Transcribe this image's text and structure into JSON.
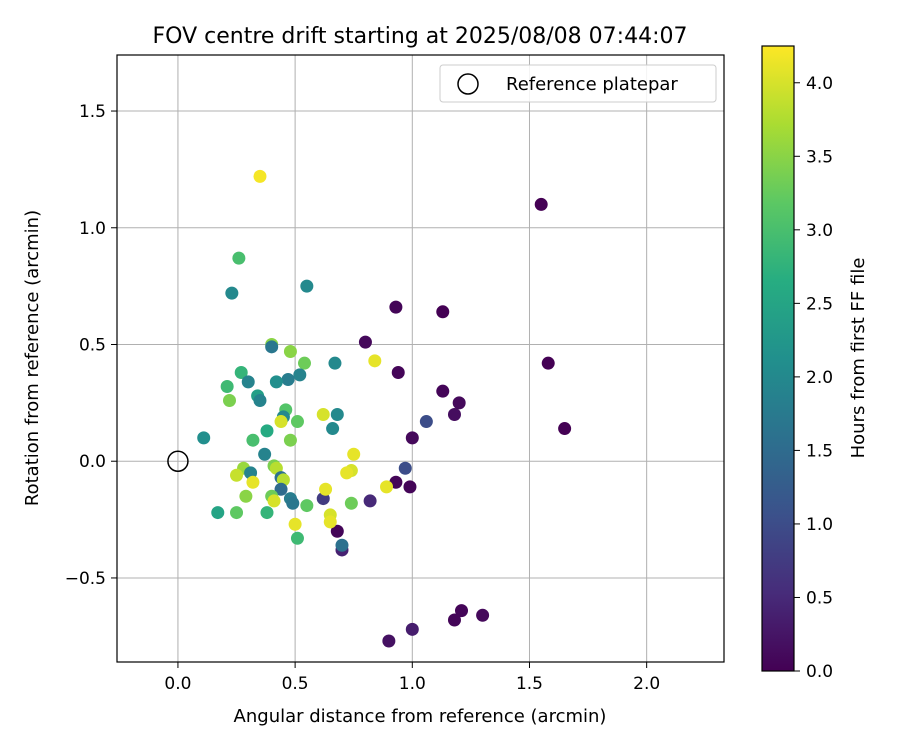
{
  "chart_data": {
    "type": "scatter",
    "title": "FOV centre drift starting at 2025/08/08 07:44:07",
    "xlabel": "Angular distance from reference (arcmin)",
    "ylabel": "Rotation from reference (arcmin)",
    "xlim": [
      -0.26,
      2.33
    ],
    "ylim": [
      -0.86,
      1.74
    ],
    "xticks": [
      0.0,
      0.5,
      1.0,
      1.5,
      2.0
    ],
    "yticks": [
      -0.5,
      0.0,
      0.5,
      1.0,
      1.5
    ],
    "xtick_labels": [
      "0.0",
      "0.5",
      "1.0",
      "1.5",
      "2.0"
    ],
    "ytick_labels": [
      "−0.5",
      "0.0",
      "0.5",
      "1.0",
      "1.5"
    ],
    "grid": true,
    "legend": {
      "position": "top-right",
      "entries": [
        "Reference platepar"
      ]
    },
    "reference_point": {
      "x": 0.0,
      "y": 0.0
    },
    "colorbar": {
      "label": "Hours from first FF file",
      "colormap": "viridis",
      "range": [
        0.0,
        4.25
      ],
      "ticks": [
        0.0,
        0.5,
        1.0,
        1.5,
        2.0,
        2.5,
        3.0,
        3.5,
        4.0
      ],
      "tick_labels": [
        "0.0",
        "0.5",
        "1.0",
        "1.5",
        "2.0",
        "2.5",
        "3.0",
        "3.5",
        "4.0"
      ]
    },
    "points": [
      {
        "x": 1.55,
        "y": 1.1,
        "c": 0.0
      },
      {
        "x": 1.58,
        "y": 0.42,
        "c": 0.0
      },
      {
        "x": 1.65,
        "y": 0.14,
        "c": 0.0
      },
      {
        "x": 1.13,
        "y": 0.64,
        "c": 0.0
      },
      {
        "x": 0.93,
        "y": 0.66,
        "c": 0.05
      },
      {
        "x": 0.8,
        "y": 0.51,
        "c": 0.1
      },
      {
        "x": 0.94,
        "y": 0.38,
        "c": 0.05
      },
      {
        "x": 1.13,
        "y": 0.3,
        "c": 0.05
      },
      {
        "x": 1.2,
        "y": 0.25,
        "c": 0.1
      },
      {
        "x": 1.18,
        "y": 0.2,
        "c": 0.15
      },
      {
        "x": 1.06,
        "y": 0.17,
        "c": 1.0
      },
      {
        "x": 1.0,
        "y": 0.1,
        "c": 0.1
      },
      {
        "x": 0.97,
        "y": -0.03,
        "c": 1.0
      },
      {
        "x": 0.93,
        "y": -0.09,
        "c": 0.05
      },
      {
        "x": 0.99,
        "y": -0.11,
        "c": 0.05
      },
      {
        "x": 0.82,
        "y": -0.17,
        "c": 0.5
      },
      {
        "x": 0.62,
        "y": -0.16,
        "c": 0.75
      },
      {
        "x": 0.68,
        "y": -0.3,
        "c": 0.05
      },
      {
        "x": 0.7,
        "y": -0.38,
        "c": 0.4
      },
      {
        "x": 0.7,
        "y": -0.36,
        "c": 1.6
      },
      {
        "x": 1.3,
        "y": -0.66,
        "c": 0.1
      },
      {
        "x": 1.21,
        "y": -0.64,
        "c": 0.05
      },
      {
        "x": 1.18,
        "y": -0.68,
        "c": 0.05
      },
      {
        "x": 1.0,
        "y": -0.72,
        "c": 0.35
      },
      {
        "x": 0.9,
        "y": -0.77,
        "c": 0.2
      },
      {
        "x": 0.35,
        "y": 1.22,
        "c": 4.2
      },
      {
        "x": 0.26,
        "y": 0.87,
        "c": 3.0
      },
      {
        "x": 0.23,
        "y": 0.72,
        "c": 2.0
      },
      {
        "x": 0.55,
        "y": 0.75,
        "c": 2.0
      },
      {
        "x": 0.4,
        "y": 0.5,
        "c": 3.5
      },
      {
        "x": 0.4,
        "y": 0.49,
        "c": 1.7
      },
      {
        "x": 0.48,
        "y": 0.47,
        "c": 3.5
      },
      {
        "x": 0.54,
        "y": 0.42,
        "c": 3.3
      },
      {
        "x": 0.67,
        "y": 0.42,
        "c": 2.0
      },
      {
        "x": 0.84,
        "y": 0.43,
        "c": 4.1
      },
      {
        "x": 0.27,
        "y": 0.38,
        "c": 2.8
      },
      {
        "x": 0.52,
        "y": 0.37,
        "c": 1.9
      },
      {
        "x": 0.47,
        "y": 0.35,
        "c": 1.8
      },
      {
        "x": 0.42,
        "y": 0.34,
        "c": 2.1
      },
      {
        "x": 0.3,
        "y": 0.34,
        "c": 1.9
      },
      {
        "x": 0.21,
        "y": 0.32,
        "c": 2.9
      },
      {
        "x": 0.34,
        "y": 0.28,
        "c": 2.4
      },
      {
        "x": 0.35,
        "y": 0.26,
        "c": 1.9
      },
      {
        "x": 0.22,
        "y": 0.26,
        "c": 3.4
      },
      {
        "x": 0.46,
        "y": 0.22,
        "c": 3.1
      },
      {
        "x": 0.45,
        "y": 0.19,
        "c": 2.0
      },
      {
        "x": 0.62,
        "y": 0.2,
        "c": 4.0
      },
      {
        "x": 0.68,
        "y": 0.2,
        "c": 2.0
      },
      {
        "x": 0.44,
        "y": 0.17,
        "c": 4.0
      },
      {
        "x": 0.51,
        "y": 0.17,
        "c": 3.2
      },
      {
        "x": 0.66,
        "y": 0.14,
        "c": 2.0
      },
      {
        "x": 0.38,
        "y": 0.13,
        "c": 2.6
      },
      {
        "x": 0.11,
        "y": 0.1,
        "c": 2.1
      },
      {
        "x": 0.32,
        "y": 0.09,
        "c": 3.0
      },
      {
        "x": 0.48,
        "y": 0.09,
        "c": 3.4
      },
      {
        "x": 0.37,
        "y": 0.03,
        "c": 1.9
      },
      {
        "x": 0.75,
        "y": 0.03,
        "c": 4.1
      },
      {
        "x": 0.41,
        "y": -0.02,
        "c": 3.4
      },
      {
        "x": 0.42,
        "y": -0.03,
        "c": 3.8
      },
      {
        "x": 0.28,
        "y": -0.03,
        "c": 3.6
      },
      {
        "x": 0.31,
        "y": -0.05,
        "c": 1.9
      },
      {
        "x": 0.74,
        "y": -0.04,
        "c": 4.0
      },
      {
        "x": 0.72,
        "y": -0.05,
        "c": 4.1
      },
      {
        "x": 0.25,
        "y": -0.06,
        "c": 3.9
      },
      {
        "x": 0.44,
        "y": -0.07,
        "c": 1.6
      },
      {
        "x": 0.45,
        "y": -0.08,
        "c": 3.8
      },
      {
        "x": 0.32,
        "y": -0.09,
        "c": 4.1
      },
      {
        "x": 0.44,
        "y": -0.12,
        "c": 1.5
      },
      {
        "x": 0.63,
        "y": -0.12,
        "c": 4.1
      },
      {
        "x": 0.89,
        "y": -0.11,
        "c": 4.1
      },
      {
        "x": 0.29,
        "y": -0.15,
        "c": 3.5
      },
      {
        "x": 0.4,
        "y": -0.15,
        "c": 3.3
      },
      {
        "x": 0.48,
        "y": -0.16,
        "c": 1.8
      },
      {
        "x": 0.41,
        "y": -0.17,
        "c": 4.0
      },
      {
        "x": 0.49,
        "y": -0.18,
        "c": 1.7
      },
      {
        "x": 0.55,
        "y": -0.19,
        "c": 3.2
      },
      {
        "x": 0.74,
        "y": -0.18,
        "c": 3.3
      },
      {
        "x": 0.17,
        "y": -0.22,
        "c": 2.5
      },
      {
        "x": 0.25,
        "y": -0.22,
        "c": 3.2
      },
      {
        "x": 0.38,
        "y": -0.22,
        "c": 2.8
      },
      {
        "x": 0.65,
        "y": -0.23,
        "c": 4.0
      },
      {
        "x": 0.65,
        "y": -0.26,
        "c": 4.1
      },
      {
        "x": 0.5,
        "y": -0.27,
        "c": 4.1
      },
      {
        "x": 0.51,
        "y": -0.33,
        "c": 2.9
      }
    ]
  }
}
